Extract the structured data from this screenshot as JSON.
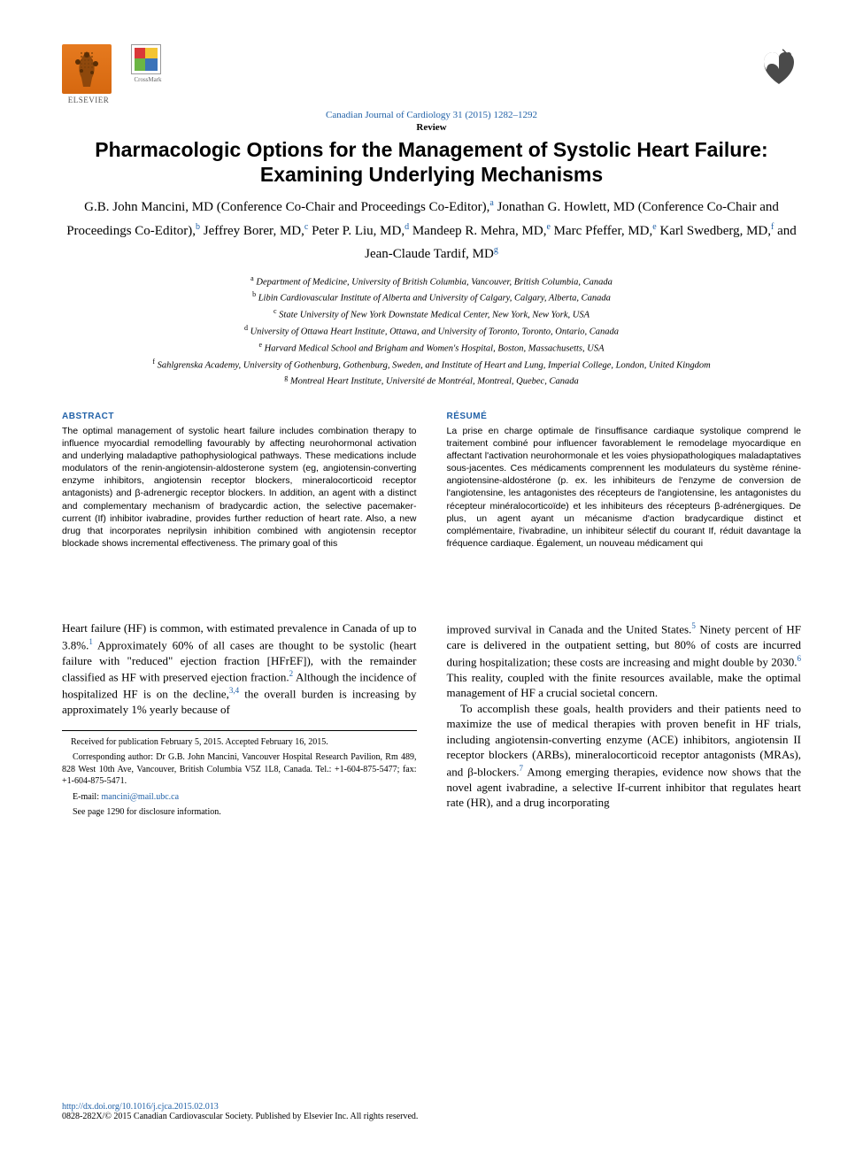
{
  "colors": {
    "link": "#2262a8",
    "text": "#000000",
    "elsevier_orange": "#e67a1f"
  },
  "header": {
    "elsevier_label": "ELSEVIER",
    "crossmark_label": "CrossMark",
    "citation": "Canadian Journal of Cardiology 31 (2015) 1282–1292",
    "article_type": "Review"
  },
  "title": "Pharmacologic Options for the Management of Systolic Heart Failure: Examining Underlying Mechanisms",
  "authors_html": "G.B. John Mancini, MD (Conference Co-Chair and Proceedings Co-Editor),<sup>a</sup> Jonathan G. Howlett, MD (Conference Co-Chair and Proceedings Co-Editor),<sup>b</sup> Jeffrey Borer, MD,<sup>c</sup> Peter P. Liu, MD,<sup>d</sup> Mandeep R. Mehra, MD,<sup>e</sup> Marc Pfeffer, MD,<sup>e</sup> Karl Swedberg, MD,<sup>f</sup> and Jean-Claude Tardif, MD<sup>g</sup>",
  "affiliations": [
    {
      "key": "a",
      "text": "Department of Medicine, University of British Columbia, Vancouver, British Columbia, Canada"
    },
    {
      "key": "b",
      "text": "Libin Cardiovascular Institute of Alberta and University of Calgary, Calgary, Alberta, Canada"
    },
    {
      "key": "c",
      "text": "State University of New York Downstate Medical Center, New York, New York, USA"
    },
    {
      "key": "d",
      "text": "University of Ottawa Heart Institute, Ottawa, and University of Toronto, Toronto, Ontario, Canada"
    },
    {
      "key": "e",
      "text": "Harvard Medical School and Brigham and Women's Hospital, Boston, Massachusetts, USA"
    },
    {
      "key": "f",
      "text": "Sahlgrenska Academy, University of Gothenburg, Gothenburg, Sweden, and Institute of Heart and Lung, Imperial College, London, United Kingdom"
    },
    {
      "key": "g",
      "text": "Montreal Heart Institute, Université de Montréal, Montreal, Quebec, Canada"
    }
  ],
  "abstract": {
    "en": {
      "heading": "ABSTRACT",
      "text": "The optimal management of systolic heart failure includes combination therapy to influence myocardial remodelling favourably by affecting neurohormonal activation and underlying maladaptive pathophysiological pathways. These medications include modulators of the renin-angiotensin-aldosterone system (eg, angiotensin-converting enzyme inhibitors, angiotensin receptor blockers, mineralocorticoid receptor antagonists) and β-adrenergic receptor blockers. In addition, an agent with a distinct and complementary mechanism of bradycardic action, the selective pacemaker-current (If) inhibitor ivabradine, provides further reduction of heart rate. Also, a new drug that incorporates neprilysin inhibition combined with angiotensin receptor blockade shows incremental effectiveness. The primary goal of this"
    },
    "fr": {
      "heading": "RÉSUMÉ",
      "text": "La prise en charge optimale de l'insuffisance cardiaque systolique comprend le traitement combiné pour influencer favorablement le remodelage myocardique en affectant l'activation neurohormonale et les voies physiopathologiques maladaptatives sous-jacentes. Ces médicaments comprennent les modulateurs du système rénine-angiotensine-aldostérone (p. ex. les inhibiteurs de l'enzyme de conversion de l'angiotensine, les antagonistes des récepteurs de l'angiotensine, les antagonistes du récepteur minéralocorticoïde) et les inhibiteurs des récepteurs β-adrénergiques. De plus, un agent ayant un mécanisme d'action bradycardique distinct et complémentaire, l'ivabradine, un inhibiteur sélectif du courant If, réduit davantage la fréquence cardiaque. Également, un nouveau médicament qui"
    }
  },
  "body": {
    "left": "Heart failure (HF) is common, with estimated prevalence in Canada of up to 3.8%.<sup>1</sup> Approximately 60% of all cases are thought to be systolic (heart failure with \"reduced\" ejection fraction [HFrEF]), with the remainder classified as HF with preserved ejection fraction.<sup>2</sup> Although the incidence of hospitalized HF is on the decline,<sup>3,4</sup> the overall burden is increasing by approximately 1% yearly because of",
    "right_p1": "improved survival in Canada and the United States.<sup>5</sup> Ninety percent of HF care is delivered in the outpatient setting, but 80% of costs are incurred during hospitalization; these costs are increasing and might double by 2030.<sup>6</sup> This reality, coupled with the finite resources available, make the optimal management of HF a crucial societal concern.",
    "right_p2": "To accomplish these goals, health providers and their patients need to maximize the use of medical therapies with proven benefit in HF trials, including angiotensin-converting enzyme (ACE) inhibitors, angiotensin II receptor blockers (ARBs), mineralocorticoid receptor antagonists (MRAs), and β-blockers.<sup>7</sup> Among emerging therapies, evidence now shows that the novel agent ivabradine, a selective If-current inhibitor that regulates heart rate (HR), and a drug incorporating"
  },
  "footnotes": {
    "received": "Received for publication February 5, 2015. Accepted February 16, 2015.",
    "corresponding": "Corresponding author: Dr G.B. John Mancini, Vancouver Hospital Research Pavilion, Rm 489, 828 West 10th Ave, Vancouver, British Columbia V5Z 1L8, Canada. Tel.: +1-604-875-5477; fax: +1-604-875-5471.",
    "email_label": "E-mail:",
    "email": "mancini@mail.ubc.ca",
    "disclosure": "See page 1290 for disclosure information."
  },
  "footer": {
    "doi": "http://dx.doi.org/10.1016/j.cjca.2015.02.013",
    "copyright": "0828-282X/© 2015 Canadian Cardiovascular Society. Published by Elsevier Inc. All rights reserved."
  }
}
